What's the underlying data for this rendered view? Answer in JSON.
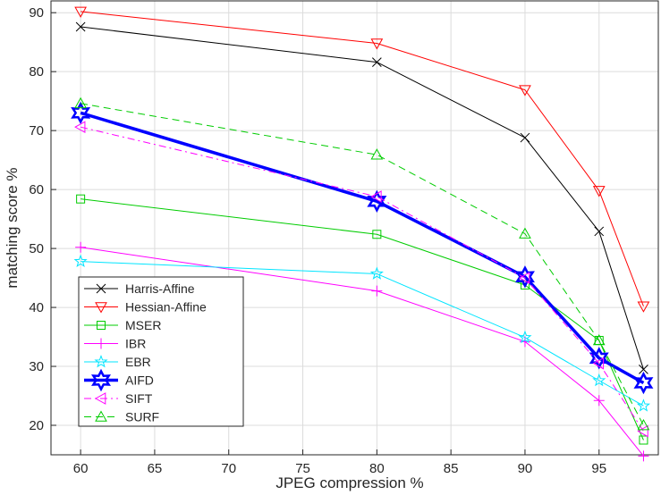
{
  "chart_data": {
    "type": "line",
    "title": "",
    "xlabel": "JPEG compression %",
    "ylabel": "matching score %",
    "x": [
      60,
      80,
      90,
      95,
      98
    ],
    "x_tick_labels": [
      "60",
      "65",
      "70",
      "75",
      "80",
      "85",
      "90",
      "95"
    ],
    "y_tick_labels": [
      "20",
      "30",
      "40",
      "50",
      "60",
      "70",
      "80",
      "90"
    ],
    "ylim": [
      15,
      92
    ],
    "grid": true,
    "legend_position": "bottom-left",
    "series": [
      {
        "name": "Harris-Affine",
        "color": "#000000",
        "marker": "x",
        "dash": "solid",
        "width": 1,
        "values": [
          87.6,
          81.6,
          68.8,
          52.9,
          29.5
        ]
      },
      {
        "name": "Hessian-Affine",
        "color": "#ff0000",
        "marker": "triangle-down",
        "dash": "solid",
        "width": 1,
        "values": [
          90.2,
          84.8,
          76.9,
          59.8,
          40.2
        ]
      },
      {
        "name": "MSER",
        "color": "#00cc00",
        "marker": "square",
        "dash": "solid",
        "width": 1,
        "values": [
          58.4,
          52.4,
          43.8,
          34.4,
          17.5
        ]
      },
      {
        "name": "IBR",
        "color": "#ff00ff",
        "marker": "plus",
        "dash": "solid",
        "width": 1,
        "values": [
          50.2,
          42.8,
          34.2,
          24.2,
          14.8
        ]
      },
      {
        "name": "EBR",
        "color": "#00e5ff",
        "marker": "star",
        "dash": "solid",
        "width": 1,
        "values": [
          47.8,
          45.7,
          34.9,
          27.6,
          23.3
        ]
      },
      {
        "name": "AIFD",
        "color": "#0000ff",
        "marker": "hexagram",
        "dash": "solid",
        "width": 3.5,
        "values": [
          73.0,
          58.0,
          45.2,
          31.4,
          27.2
        ]
      },
      {
        "name": "SIFT",
        "color": "#ff00ff",
        "marker": "triangle-left",
        "dash": "dashdot",
        "width": 1,
        "values": [
          70.6,
          58.8,
          45.0,
          30.5,
          19.0
        ]
      },
      {
        "name": "SURF",
        "color": "#00cc00",
        "marker": "triangle-up",
        "dash": "dashed",
        "width": 1,
        "values": [
          74.6,
          65.9,
          52.5,
          34.4,
          20.0
        ]
      }
    ]
  }
}
